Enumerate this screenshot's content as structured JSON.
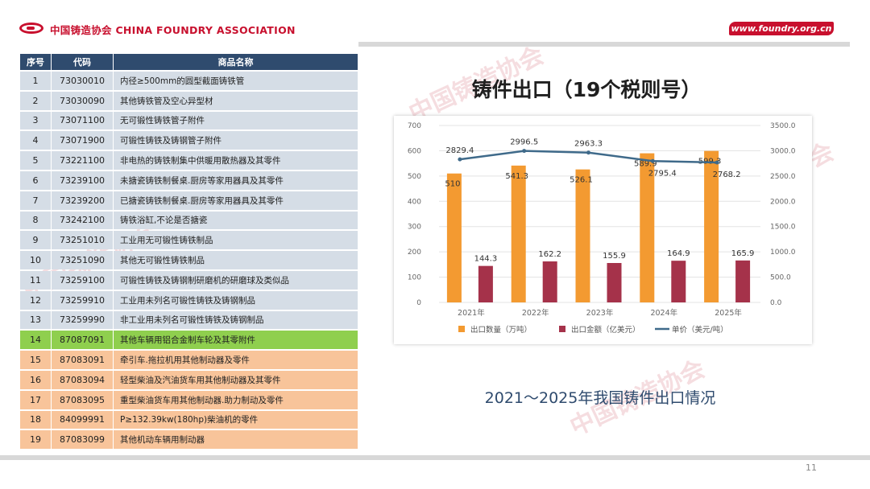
{
  "header": {
    "logo_text": "中国铸造协会 CHINA FOUNDRY ASSOCIATION",
    "url_text": "www.foundry.org.cn"
  },
  "page_number": "11",
  "table": {
    "headers": [
      "序号",
      "代码",
      "商品名称"
    ],
    "rows": [
      {
        "idx": "1",
        "code": "73030010",
        "name": "内径≥500mm的圆型截面铸铁管",
        "style": "grey"
      },
      {
        "idx": "2",
        "code": "73030090",
        "name": "其他铸铁管及空心异型材",
        "style": "grey"
      },
      {
        "idx": "3",
        "code": "73071100",
        "name": "无可锻性铸铁管子附件",
        "style": "grey"
      },
      {
        "idx": "4",
        "code": "73071900",
        "name": "可锻性铸铁及铸钢管子附件",
        "style": "grey"
      },
      {
        "idx": "5",
        "code": "73221100",
        "name": "非电热的铸铁制集中供暖用散热器及其零件",
        "style": "grey"
      },
      {
        "idx": "6",
        "code": "73239100",
        "name": "未搪瓷铸铁制餐桌.厨房等家用器具及其零件",
        "style": "grey"
      },
      {
        "idx": "7",
        "code": "73239200",
        "name": "已搪瓷铸铁制餐桌.厨房等家用器具及其零件",
        "style": "grey"
      },
      {
        "idx": "8",
        "code": "73242100",
        "name": "铸铁浴缸,不论是否搪瓷",
        "style": "grey"
      },
      {
        "idx": "9",
        "code": "73251010",
        "name": "工业用无可锻性铸铁制品",
        "style": "grey"
      },
      {
        "idx": "10",
        "code": "73251090",
        "name": "其他无可锻性铸铁制品",
        "style": "grey"
      },
      {
        "idx": "11",
        "code": "73259100",
        "name": "可锻性铸铁及铸钢制研磨机的研磨球及类似品",
        "style": "grey"
      },
      {
        "idx": "12",
        "code": "73259910",
        "name": "工业用未列名可锻性铸铁及铸钢制品",
        "style": "grey"
      },
      {
        "idx": "13",
        "code": "73259990",
        "name": "非工业用未列名可锻性铸铁及铸钢制品",
        "style": "grey"
      },
      {
        "idx": "14",
        "code": "87087091",
        "name": "其他车辆用铝合金制车轮及其零附件",
        "style": "green"
      },
      {
        "idx": "15",
        "code": "87083091",
        "name": "牵引车.拖拉机用其他制动器及零件",
        "style": "orange"
      },
      {
        "idx": "16",
        "code": "87083094",
        "name": "轻型柴油及汽油货车用其他制动器及其零件",
        "style": "orange"
      },
      {
        "idx": "17",
        "code": "87083095",
        "name": "重型柴油货车用其他制动器.助力制动及零件",
        "style": "orange"
      },
      {
        "idx": "18",
        "code": "84099991",
        "name": "P≥132.39kw(180hp)柴油机的零件",
        "style": "orange"
      },
      {
        "idx": "19",
        "code": "87083099",
        "name": "其他机动车辆用制动器",
        "style": "orange"
      }
    ]
  },
  "chart_title": "铸件出口（19个税则号）",
  "caption": "2021～2025年我国铸件出口情况",
  "chart_data": {
    "type": "bar",
    "categories": [
      "2021年",
      "2022年",
      "2023年",
      "2024年",
      "2025年"
    ],
    "series": [
      {
        "name": "出口数量（万吨）",
        "kind": "bar",
        "axis": "left",
        "color": "#f39a31",
        "values": [
          510,
          541.3,
          526.1,
          589.9,
          599.3
        ]
      },
      {
        "name": "出口金额（亿美元）",
        "kind": "bar",
        "axis": "left",
        "color": "#a5324a",
        "values": [
          144.3,
          162.2,
          155.9,
          164.9,
          165.9
        ]
      },
      {
        "name": "单价（美元/吨）",
        "kind": "line",
        "axis": "right",
        "color": "#3f6a8a",
        "values": [
          2829.4,
          2996.5,
          2963.3,
          2795.4,
          2768.2
        ]
      }
    ],
    "y_left": {
      "min": 0,
      "max": 700,
      "ticks": [
        "0",
        "100",
        "200",
        "300",
        "400",
        "500",
        "600",
        "700"
      ]
    },
    "y_right": {
      "min": 0,
      "max": 3500,
      "ticks": [
        "0.0",
        "500.0",
        "1000.0",
        "1500.0",
        "2000.0",
        "2500.0",
        "3000.0",
        "3500.0"
      ]
    },
    "grid": true,
    "legend_position": "bottom"
  }
}
